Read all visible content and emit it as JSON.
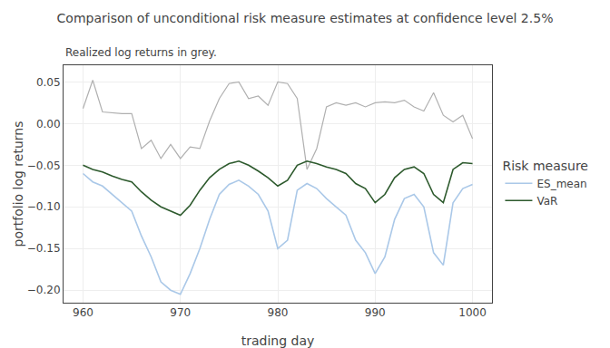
{
  "chart_data": {
    "type": "line",
    "title": "Comparison of unconditional risk measure estimates at confidence level 2.5%",
    "subtitle": "Realized log returns in grey.",
    "x_label": "trading day",
    "y_label": "portfolio log returns",
    "x": [
      960,
      961,
      962,
      963,
      964,
      965,
      966,
      967,
      968,
      969,
      970,
      971,
      972,
      973,
      974,
      975,
      976,
      977,
      978,
      979,
      980,
      981,
      982,
      983,
      984,
      985,
      986,
      987,
      988,
      989,
      990,
      991,
      992,
      993,
      994,
      995,
      996,
      997,
      998,
      999,
      1000
    ],
    "series": [
      {
        "color": "#b0b0b0",
        "values": [
          0.018,
          0.052,
          0.014,
          0.013,
          0.012,
          0.012,
          -0.03,
          -0.02,
          -0.042,
          -0.025,
          -0.042,
          -0.028,
          -0.03,
          0.003,
          0.03,
          0.048,
          0.05,
          0.03,
          0.033,
          0.022,
          0.05,
          0.048,
          0.03,
          -0.055,
          -0.03,
          0.02,
          0.025,
          0.022,
          0.025,
          0.02,
          0.025,
          0.026,
          0.025,
          0.028,
          0.02,
          0.015,
          0.037,
          0.01,
          0.002,
          0.01,
          -0.018
        ]
      },
      {
        "name": "ES_mean",
        "color": "#aac8e8",
        "values": [
          -0.06,
          -0.07,
          -0.075,
          -0.085,
          -0.095,
          -0.105,
          -0.135,
          -0.16,
          -0.19,
          -0.2,
          -0.205,
          -0.18,
          -0.15,
          -0.115,
          -0.085,
          -0.073,
          -0.068,
          -0.075,
          -0.085,
          -0.105,
          -0.15,
          -0.14,
          -0.08,
          -0.072,
          -0.078,
          -0.09,
          -0.1,
          -0.11,
          -0.14,
          -0.155,
          -0.18,
          -0.16,
          -0.115,
          -0.09,
          -0.085,
          -0.1,
          -0.155,
          -0.17,
          -0.095,
          -0.078,
          -0.073
        ]
      },
      {
        "name": "VaR",
        "color": "#2d5a2d",
        "values": [
          -0.05,
          -0.055,
          -0.058,
          -0.063,
          -0.067,
          -0.07,
          -0.082,
          -0.092,
          -0.1,
          -0.105,
          -0.11,
          -0.098,
          -0.08,
          -0.065,
          -0.055,
          -0.048,
          -0.045,
          -0.05,
          -0.057,
          -0.065,
          -0.075,
          -0.068,
          -0.05,
          -0.045,
          -0.048,
          -0.052,
          -0.055,
          -0.06,
          -0.072,
          -0.078,
          -0.095,
          -0.085,
          -0.065,
          -0.055,
          -0.052,
          -0.06,
          -0.085,
          -0.095,
          -0.055,
          -0.047,
          -0.048
        ]
      }
    ],
    "xlim": [
      958,
      1002
    ],
    "ylim": [
      -0.215,
      0.07
    ],
    "xticks": [
      960,
      970,
      980,
      990,
      1000
    ],
    "yticks": [
      {
        "value": -0.2,
        "label": "−0.20"
      },
      {
        "value": -0.15,
        "label": "−0.15"
      },
      {
        "value": -0.1,
        "label": "−0.10"
      },
      {
        "value": -0.05,
        "label": "−0.05"
      },
      {
        "value": 0.0,
        "label": "0.00"
      },
      {
        "value": 0.05,
        "label": "0.05"
      }
    ],
    "legend_title": "Risk measure",
    "legend": "right",
    "grid": true
  }
}
